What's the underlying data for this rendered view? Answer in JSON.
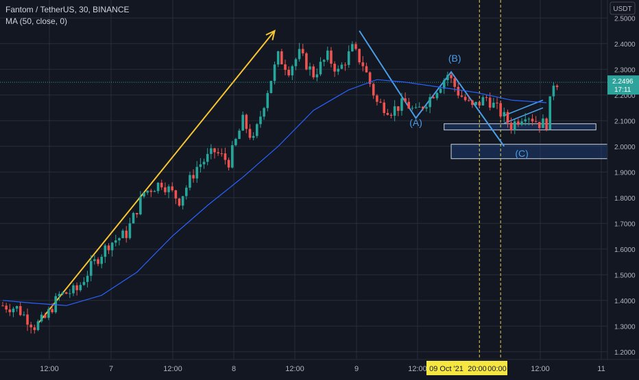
{
  "header": {
    "symbol_line": "Fantom / TetherUS, 30, BINANCE",
    "indicator_line": "MA (50, close, 0)"
  },
  "colors": {
    "background": "#131722",
    "grid": "#2a2e39",
    "up": "#26a69a",
    "down": "#ef5350",
    "ma": "#2962ff",
    "trend_arrow": "#f7c532",
    "wave": "#4a9ee8",
    "box": "#1e3a6e",
    "last_price": "#2ea39b",
    "time_highlight": "#f5e642"
  },
  "chart_data": {
    "type": "candlestick",
    "symbol": "Fantom / TetherUS",
    "interval": "30",
    "exchange": "BINANCE",
    "indicator": "MA (50, close, 0)",
    "y_axis": {
      "unit_label": "USDT",
      "scale": "linear",
      "range": [
        1.17,
        2.57
      ],
      "ticks": [
        "2.5000",
        "2.4000",
        "2.3000",
        "2.2000",
        "2.1000",
        "2.0000",
        "1.9000",
        "1.8000",
        "1.7000",
        "1.6000",
        "1.5000",
        "1.4000",
        "1.3000",
        "1.2000"
      ]
    },
    "x_axis": {
      "ticks": [
        "12:00",
        "7",
        "12:00",
        "8",
        "12:00",
        "9",
        "12:00",
        "12:00",
        "11"
      ],
      "highlighted_labels": [
        "09 Oct '21",
        "20:00",
        "00:00"
      ]
    },
    "grid": true,
    "last_price": {
      "value": "2.2496",
      "countdown": "17:11"
    },
    "prices_anchor": [
      {
        "bar": 0,
        "price": 1.38
      },
      {
        "bar": 4,
        "price": 1.37
      },
      {
        "bar": 9,
        "price": 1.3
      },
      {
        "bar": 12,
        "price": 1.33
      },
      {
        "bar": 16,
        "price": 1.42
      },
      {
        "bar": 21,
        "price": 1.44
      },
      {
        "bar": 25,
        "price": 1.53
      },
      {
        "bar": 30,
        "price": 1.62
      },
      {
        "bar": 35,
        "price": 1.66
      },
      {
        "bar": 40,
        "price": 1.82
      },
      {
        "bar": 45,
        "price": 1.86
      },
      {
        "bar": 50,
        "price": 1.79
      },
      {
        "bar": 55,
        "price": 1.92
      },
      {
        "bar": 60,
        "price": 1.98
      },
      {
        "bar": 64,
        "price": 1.94
      },
      {
        "bar": 68,
        "price": 2.1
      },
      {
        "bar": 71,
        "price": 2.02
      },
      {
        "bar": 75,
        "price": 2.22
      },
      {
        "bar": 78,
        "price": 2.35
      },
      {
        "bar": 81,
        "price": 2.3
      },
      {
        "bar": 84,
        "price": 2.36
      },
      {
        "bar": 88,
        "price": 2.28
      },
      {
        "bar": 92,
        "price": 2.35
      },
      {
        "bar": 95,
        "price": 2.29
      },
      {
        "bar": 99,
        "price": 2.38
      },
      {
        "bar": 102,
        "price": 2.32
      },
      {
        "bar": 106,
        "price": 2.17
      },
      {
        "bar": 110,
        "price": 2.14
      },
      {
        "bar": 114,
        "price": 2.17
      },
      {
        "bar": 117,
        "price": 2.13
      },
      {
        "bar": 121,
        "price": 2.19
      },
      {
        "bar": 126,
        "price": 2.28
      },
      {
        "bar": 129,
        "price": 2.21
      },
      {
        "bar": 133,
        "price": 2.15
      },
      {
        "bar": 137,
        "price": 2.19
      },
      {
        "bar": 141,
        "price": 2.13
      },
      {
        "bar": 144,
        "price": 2.08
      },
      {
        "bar": 148,
        "price": 2.13
      },
      {
        "bar": 152,
        "price": 2.09
      },
      {
        "bar": 154,
        "price": 2.09
      },
      {
        "bar": 156,
        "price": 2.25
      },
      {
        "bar": 157,
        "price": 2.25
      }
    ],
    "ma_anchor": [
      {
        "bar": 0,
        "price": 1.4
      },
      {
        "bar": 8,
        "price": 1.39
      },
      {
        "bar": 18,
        "price": 1.38
      },
      {
        "bar": 28,
        "price": 1.42
      },
      {
        "bar": 38,
        "price": 1.51
      },
      {
        "bar": 48,
        "price": 1.65
      },
      {
        "bar": 58,
        "price": 1.77
      },
      {
        "bar": 68,
        "price": 1.88
      },
      {
        "bar": 78,
        "price": 2.0
      },
      {
        "bar": 88,
        "price": 2.14
      },
      {
        "bar": 98,
        "price": 2.22
      },
      {
        "bar": 106,
        "price": 2.26
      },
      {
        "bar": 114,
        "price": 2.25
      },
      {
        "bar": 124,
        "price": 2.23
      },
      {
        "bar": 134,
        "price": 2.21
      },
      {
        "bar": 144,
        "price": 2.18
      },
      {
        "bar": 154,
        "price": 2.17
      }
    ],
    "annotations": [
      {
        "type": "arrow",
        "from": {
          "bar": 10,
          "price": 1.31
        },
        "to": {
          "bar": 77,
          "price": 2.45
        }
      },
      {
        "type": "wave",
        "points": [
          {
            "bar": 101,
            "price": 2.45
          },
          {
            "bar": 117,
            "price": 2.11
          },
          {
            "bar": 127,
            "price": 2.29
          },
          {
            "bar": 142,
            "price": 2.0
          }
        ]
      },
      {
        "type": "channel",
        "from": {
          "bar": 142,
          "price": 2.09
        },
        "to": {
          "bar": 153,
          "price": 2.15
        }
      },
      {
        "type": "label",
        "text": "(A)",
        "bar": 117,
        "price": 2.08
      },
      {
        "type": "label",
        "text": "(B)",
        "bar": 128,
        "price": 2.33
      },
      {
        "type": "label",
        "text": "(C)",
        "bar": 147,
        "price": 1.96
      },
      {
        "type": "zone",
        "price_from": 2.064,
        "price_to": 2.088,
        "bar_from": 125,
        "bar_to": 168
      },
      {
        "type": "zone",
        "price_from": 1.952,
        "price_to": 2.008,
        "bar_from": 127,
        "bar_to": 180
      },
      {
        "type": "vline",
        "bar": 135
      },
      {
        "type": "vline",
        "bar": 141
      }
    ]
  }
}
